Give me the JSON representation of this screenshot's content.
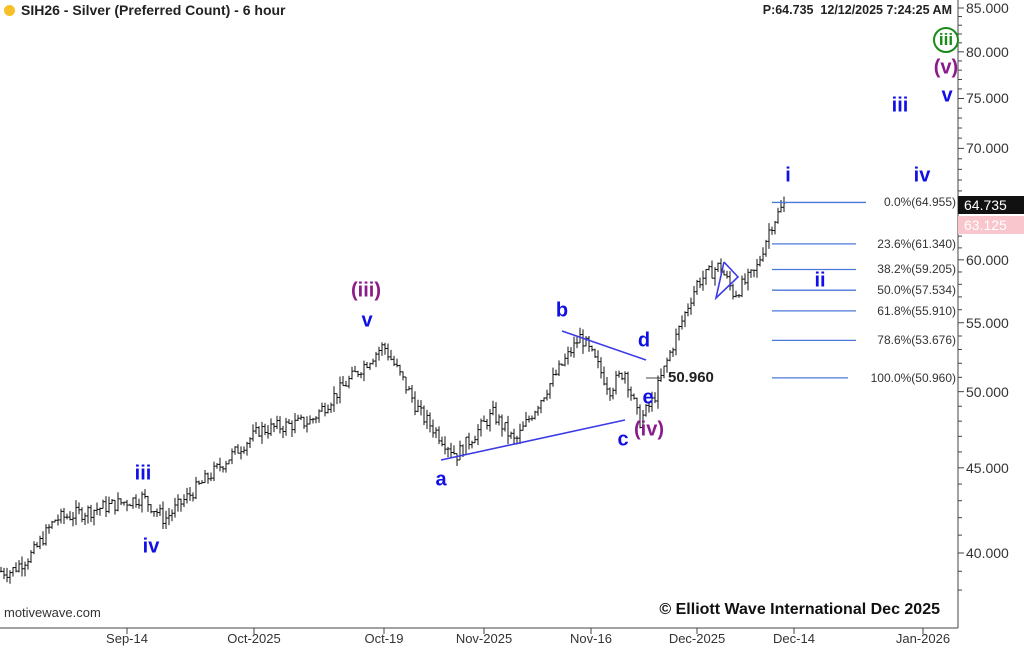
{
  "header": {
    "title": "SIH26 - Silver (Preferred Count) - 6 hour",
    "status_color": "#f5c02a",
    "price_readout": "P:64.735",
    "timestamp": "12/12/2025 7:24:25 AM"
  },
  "footer": {
    "source": "motivewave.com",
    "copyright": "© Elliott Wave International Dec 2025"
  },
  "price_tags": {
    "last": "64.735",
    "other": "63.125"
  },
  "chart_data": {
    "type": "ohlc",
    "scale": "log",
    "ylim": [
      37,
      86
    ],
    "y_ticks": [
      "85.000",
      "80.000",
      "75.000",
      "70.000",
      "60.000",
      "55.000",
      "50.000",
      "45.000",
      "40.000"
    ],
    "x_ticks": [
      "Sep-14",
      "Oct-2025",
      "Oct-19",
      "Nov-2025",
      "Nov-16",
      "Dec-2025",
      "Dec-14",
      "Jan-2026"
    ],
    "approx_path": [
      [
        "2025-08-28",
        39.0
      ],
      [
        "2025-08-31",
        40.0
      ],
      [
        "2025-09-03",
        41.9
      ],
      [
        "2025-09-15",
        43.2
      ],
      [
        "2025-09-18",
        41.9
      ],
      [
        "2025-10-01",
        47.4
      ],
      [
        "2025-10-08",
        48.0
      ],
      [
        "2025-10-18",
        53.3
      ],
      [
        "2025-10-23",
        48.5
      ],
      [
        "2025-10-28",
        45.8
      ],
      [
        "2025-11-02",
        48.5
      ],
      [
        "2025-11-05",
        46.6
      ],
      [
        "2025-11-14",
        54.0
      ],
      [
        "2025-11-18",
        50.2
      ],
      [
        "2025-11-20",
        51.5
      ],
      [
        "2025-11-22",
        47.9
      ],
      [
        "2025-11-24",
        49.5
      ],
      [
        "2025-11-30",
        58.2
      ],
      [
        "2025-12-03",
        59.5
      ],
      [
        "2025-12-05",
        57.2
      ],
      [
        "2025-12-08",
        59.1
      ],
      [
        "2025-12-10",
        62.9
      ],
      [
        "2025-12-12",
        64.9
      ]
    ],
    "fib_levels": [
      {
        "label": "0.0%(64.955)",
        "price": 64.955
      },
      {
        "label": "23.6%(61.340)",
        "price": 61.34
      },
      {
        "label": "38.2%(59.205)",
        "price": 59.205
      },
      {
        "label": "50.0%(57.534)",
        "price": 57.534
      },
      {
        "label": "61.8%(55.910)",
        "price": 55.91
      },
      {
        "label": "78.6%(53.676)",
        "price": 53.676
      },
      {
        "label": "100.0%(50.960)",
        "price": 50.96
      }
    ],
    "level_label": "50.960",
    "wave_labels": {
      "iii_minor": "iii",
      "iv_minor": "iv",
      "iii_inter": "(iii)",
      "v": "v",
      "a": "a",
      "b": "b",
      "c": "c",
      "d": "d",
      "e": "e",
      "iv_inter": "(iv)",
      "i": "i",
      "ii": "ii",
      "iii_proj": "iii",
      "iv_proj": "iv",
      "v_proj": "v",
      "v_inter_proj": "(v)",
      "iii_circle": "iii"
    },
    "colors": {
      "bars": "#111111",
      "wave_blue": "#1010e6",
      "wave_purple": "#8b1a8b",
      "wave_green": "#1a8a1a",
      "fib_line": "#4a78d8",
      "triangle": "#3a3ae8"
    }
  }
}
